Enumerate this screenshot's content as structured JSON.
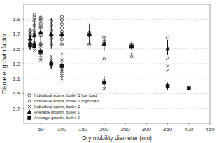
{
  "chart_data": {
    "type": "scatter",
    "x_label": "Dry mobility diameter (nm)",
    "y_label": "Diameter growth factor",
    "xlim": [
      10,
      450
    ],
    "ylim": [
      0.5,
      2.1
    ],
    "xticks": [
      50,
      100,
      150,
      200,
      250,
      300,
      350,
      400,
      450
    ],
    "yticks": [
      0.7,
      0.9,
      1.1,
      1.3,
      1.5,
      1.7,
      1.9
    ],
    "grid": "y",
    "legend": "lower left",
    "series": [
      {
        "name": "Individual scans, boiler 1 low load",
        "color": "#333333",
        "marker": "circle-open",
        "x": [
          25,
          25,
          25,
          25,
          25,
          35,
          35,
          35,
          35,
          35,
          35,
          50,
          50,
          50,
          50,
          50,
          50,
          50,
          75,
          75,
          75,
          75,
          75,
          100,
          100,
          100,
          100,
          100,
          100,
          100,
          165,
          165,
          200,
          200,
          265,
          350
        ],
        "values": [
          1.58,
          1.62,
          1.67,
          1.7,
          1.74,
          1.7,
          1.75,
          1.82,
          1.88,
          1.92,
          1.96,
          1.68,
          1.72,
          1.78,
          1.84,
          1.89,
          1.92,
          1.8,
          1.64,
          1.68,
          1.75,
          1.82,
          1.88,
          1.63,
          1.68,
          1.73,
          1.78,
          1.83,
          1.89,
          1.93,
          1.68,
          1.72,
          1.6,
          1.65,
          1.56,
          1.65
        ]
      },
      {
        "name": "Individual scans, boiler 1 high load",
        "color": "#333333",
        "marker": "triangle-open",
        "x": [
          25,
          35,
          50,
          75,
          100,
          165,
          200,
          265,
          350
        ],
        "values": [
          1.57,
          1.58,
          1.57,
          1.57,
          1.57,
          1.57,
          1.37,
          1.4,
          1.37
        ]
      },
      {
        "name": "Individual scans, boiler 2",
        "color": "#333333",
        "marker": "x",
        "x": [
          25,
          25,
          25,
          35,
          35,
          35,
          50,
          50,
          50,
          50,
          50,
          50,
          50,
          50,
          75,
          75,
          75,
          75,
          75,
          75,
          75,
          100,
          100,
          100,
          100,
          100,
          100,
          100,
          100,
          100,
          100,
          200,
          200,
          265,
          350,
          350,
          400
        ],
        "values": [
          1.5,
          1.55,
          1.6,
          1.48,
          1.53,
          1.58,
          1.35,
          1.38,
          1.41,
          1.44,
          1.47,
          1.5,
          1.54,
          1.57,
          1.24,
          1.27,
          1.29,
          1.32,
          1.34,
          1.37,
          1.4,
          1.08,
          1.11,
          1.14,
          1.17,
          1.2,
          1.23,
          1.27,
          1.31,
          1.35,
          1.43,
          0.97,
          1.08,
          1.43,
          1.21,
          1.27,
          0.97
        ]
      },
      {
        "name": "Average growth, boiler 1",
        "color": "#111111",
        "marker": "triangle",
        "x": [
          25,
          35,
          50,
          75,
          100,
          165,
          200,
          265,
          350
        ],
        "values": [
          1.64,
          1.68,
          1.72,
          1.7,
          1.7,
          1.7,
          1.57,
          1.54,
          1.5
        ],
        "error_low": [
          0.14,
          0.16,
          0.2,
          0.2,
          0.2,
          0.14,
          0.1,
          0.06,
          0.08
        ],
        "error_high": [
          0.14,
          0.22,
          0.22,
          0.22,
          0.24,
          0.14,
          0.1,
          0.06,
          0.12
        ]
      },
      {
        "name": "Average growth, boiler 2",
        "color": "#111111",
        "marker": "square",
        "x": [
          25,
          35,
          50,
          75,
          100,
          200,
          265,
          350,
          400
        ],
        "values": [
          1.55,
          1.54,
          1.46,
          1.3,
          1.27,
          1.05,
          1.53,
          1.0,
          0.97
        ],
        "error_low": [
          0.04,
          0.04,
          0.05,
          0.06,
          0.15,
          0.09,
          0.05,
          0.05,
          0.02
        ],
        "error_high": [
          0.04,
          0.04,
          0.05,
          0.06,
          0.15,
          0.09,
          0.05,
          0.05,
          0.02
        ]
      }
    ]
  }
}
